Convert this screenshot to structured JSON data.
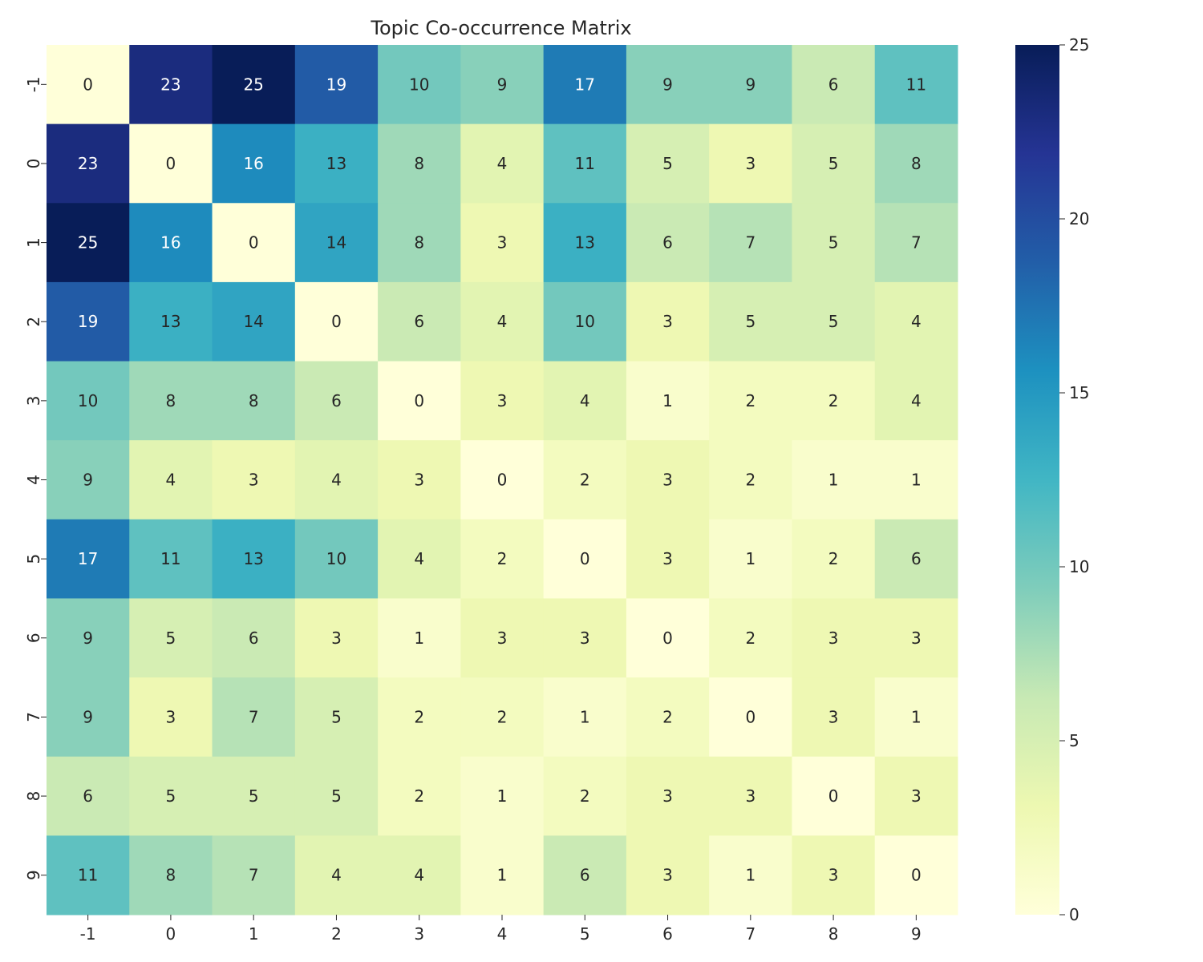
{
  "chart_data": {
    "type": "heatmap",
    "title": "Topic Co-occurrence Matrix",
    "xlabel": "",
    "ylabel": "",
    "x_categories": [
      "-1",
      "0",
      "1",
      "2",
      "3",
      "4",
      "5",
      "6",
      "7",
      "8",
      "9"
    ],
    "y_categories": [
      "-1",
      "0",
      "1",
      "2",
      "3",
      "4",
      "5",
      "6",
      "7",
      "8",
      "9"
    ],
    "values": [
      [
        0,
        23,
        25,
        19,
        10,
        9,
        17,
        9,
        9,
        6,
        11
      ],
      [
        23,
        0,
        16,
        13,
        8,
        4,
        11,
        5,
        3,
        5,
        8
      ],
      [
        25,
        16,
        0,
        14,
        8,
        3,
        13,
        6,
        7,
        5,
        7
      ],
      [
        19,
        13,
        14,
        0,
        6,
        4,
        10,
        3,
        5,
        5,
        4
      ],
      [
        10,
        8,
        8,
        6,
        0,
        3,
        4,
        1,
        2,
        2,
        4
      ],
      [
        9,
        4,
        3,
        4,
        3,
        0,
        2,
        3,
        2,
        1,
        1
      ],
      [
        17,
        11,
        13,
        10,
        4,
        2,
        0,
        3,
        1,
        2,
        6
      ],
      [
        9,
        5,
        6,
        3,
        1,
        3,
        3,
        0,
        2,
        3,
        3
      ],
      [
        9,
        3,
        7,
        5,
        2,
        2,
        1,
        2,
        0,
        3,
        1
      ],
      [
        6,
        5,
        5,
        5,
        2,
        1,
        2,
        3,
        3,
        0,
        3
      ],
      [
        11,
        8,
        7,
        4,
        4,
        1,
        6,
        3,
        1,
        3,
        0
      ]
    ],
    "value_range": [
      0,
      25
    ],
    "colormap": "YlGnBu",
    "colorbar_ticks": [
      "0",
      "5",
      "10",
      "15",
      "20",
      "25"
    ],
    "annotations": true,
    "colorbar_placement": "right"
  }
}
